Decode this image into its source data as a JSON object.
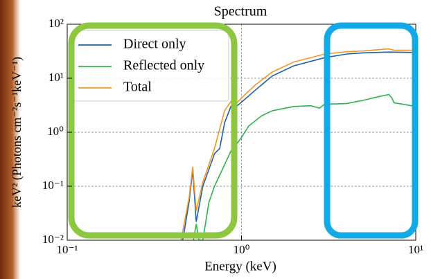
{
  "chart_data": {
    "type": "line",
    "title": "Spectrum",
    "x_label": "Energy (keV)",
    "y_label": "keV² (Photons cm⁻²s⁻¹keV⁻¹)",
    "log_x": true,
    "log_y": true,
    "grid": true,
    "legend": "upper left",
    "xlim": [
      0.1,
      10
    ],
    "ylim": [
      0.01,
      100
    ],
    "xticks": [
      {
        "value": 0.1,
        "label": "10⁻¹"
      },
      {
        "value": 1,
        "label": "10⁰"
      },
      {
        "value": 10,
        "label": "10¹"
      }
    ],
    "yticks": [
      {
        "value": 0.01,
        "label": "10⁻²"
      },
      {
        "value": 0.1,
        "label": "10⁻¹"
      },
      {
        "value": 1,
        "label": "10⁰"
      },
      {
        "value": 10,
        "label": "10¹"
      },
      {
        "value": 100,
        "label": "10²"
      }
    ],
    "series": [
      {
        "name": "Direct only",
        "color": "#1f5fa8",
        "x": [
          0.46,
          0.5,
          0.525,
          0.55,
          0.6,
          0.7,
          0.75,
          0.8,
          0.87,
          0.9,
          1.0,
          1.2,
          1.5,
          2,
          3,
          4,
          5,
          7,
          10
        ],
        "values": [
          0.01,
          0.05,
          0.2,
          0.022,
          0.1,
          0.4,
          0.5,
          1.5,
          3,
          2.7,
          3.6,
          6,
          11,
          17,
          24,
          28,
          29.5,
          30.5,
          30
        ]
      },
      {
        "name": "Reflected only",
        "color": "#2db34a",
        "x": [
          0.53,
          0.55,
          0.57,
          0.6,
          0.65,
          0.7,
          0.8,
          0.87,
          0.9,
          1.0,
          1.1,
          1.3,
          1.5,
          2,
          2.5,
          2.8,
          3,
          4,
          5,
          6,
          7,
          7.3,
          7.5,
          8,
          10
        ],
        "values": [
          0.01,
          0.02,
          0.01,
          0.01,
          0.05,
          0.1,
          0.25,
          0.45,
          0.5,
          0.8,
          1.3,
          2.0,
          2.5,
          3.0,
          3.1,
          2.8,
          3.3,
          3.4,
          3.9,
          4.5,
          5.0,
          4.3,
          3.5,
          3.4,
          3.0
        ]
      },
      {
        "name": "Total",
        "color": "#f0962a",
        "x": [
          0.45,
          0.5,
          0.525,
          0.55,
          0.6,
          0.7,
          0.8,
          0.87,
          0.9,
          1.0,
          1.2,
          1.5,
          2,
          3,
          4,
          5,
          7,
          7.5,
          10
        ],
        "values": [
          0.01,
          0.06,
          0.23,
          0.035,
          0.12,
          0.5,
          2.5,
          3.7,
          3.0,
          4.3,
          7.5,
          13,
          20,
          28,
          31,
          32,
          35,
          33,
          33
        ]
      }
    ]
  }
}
